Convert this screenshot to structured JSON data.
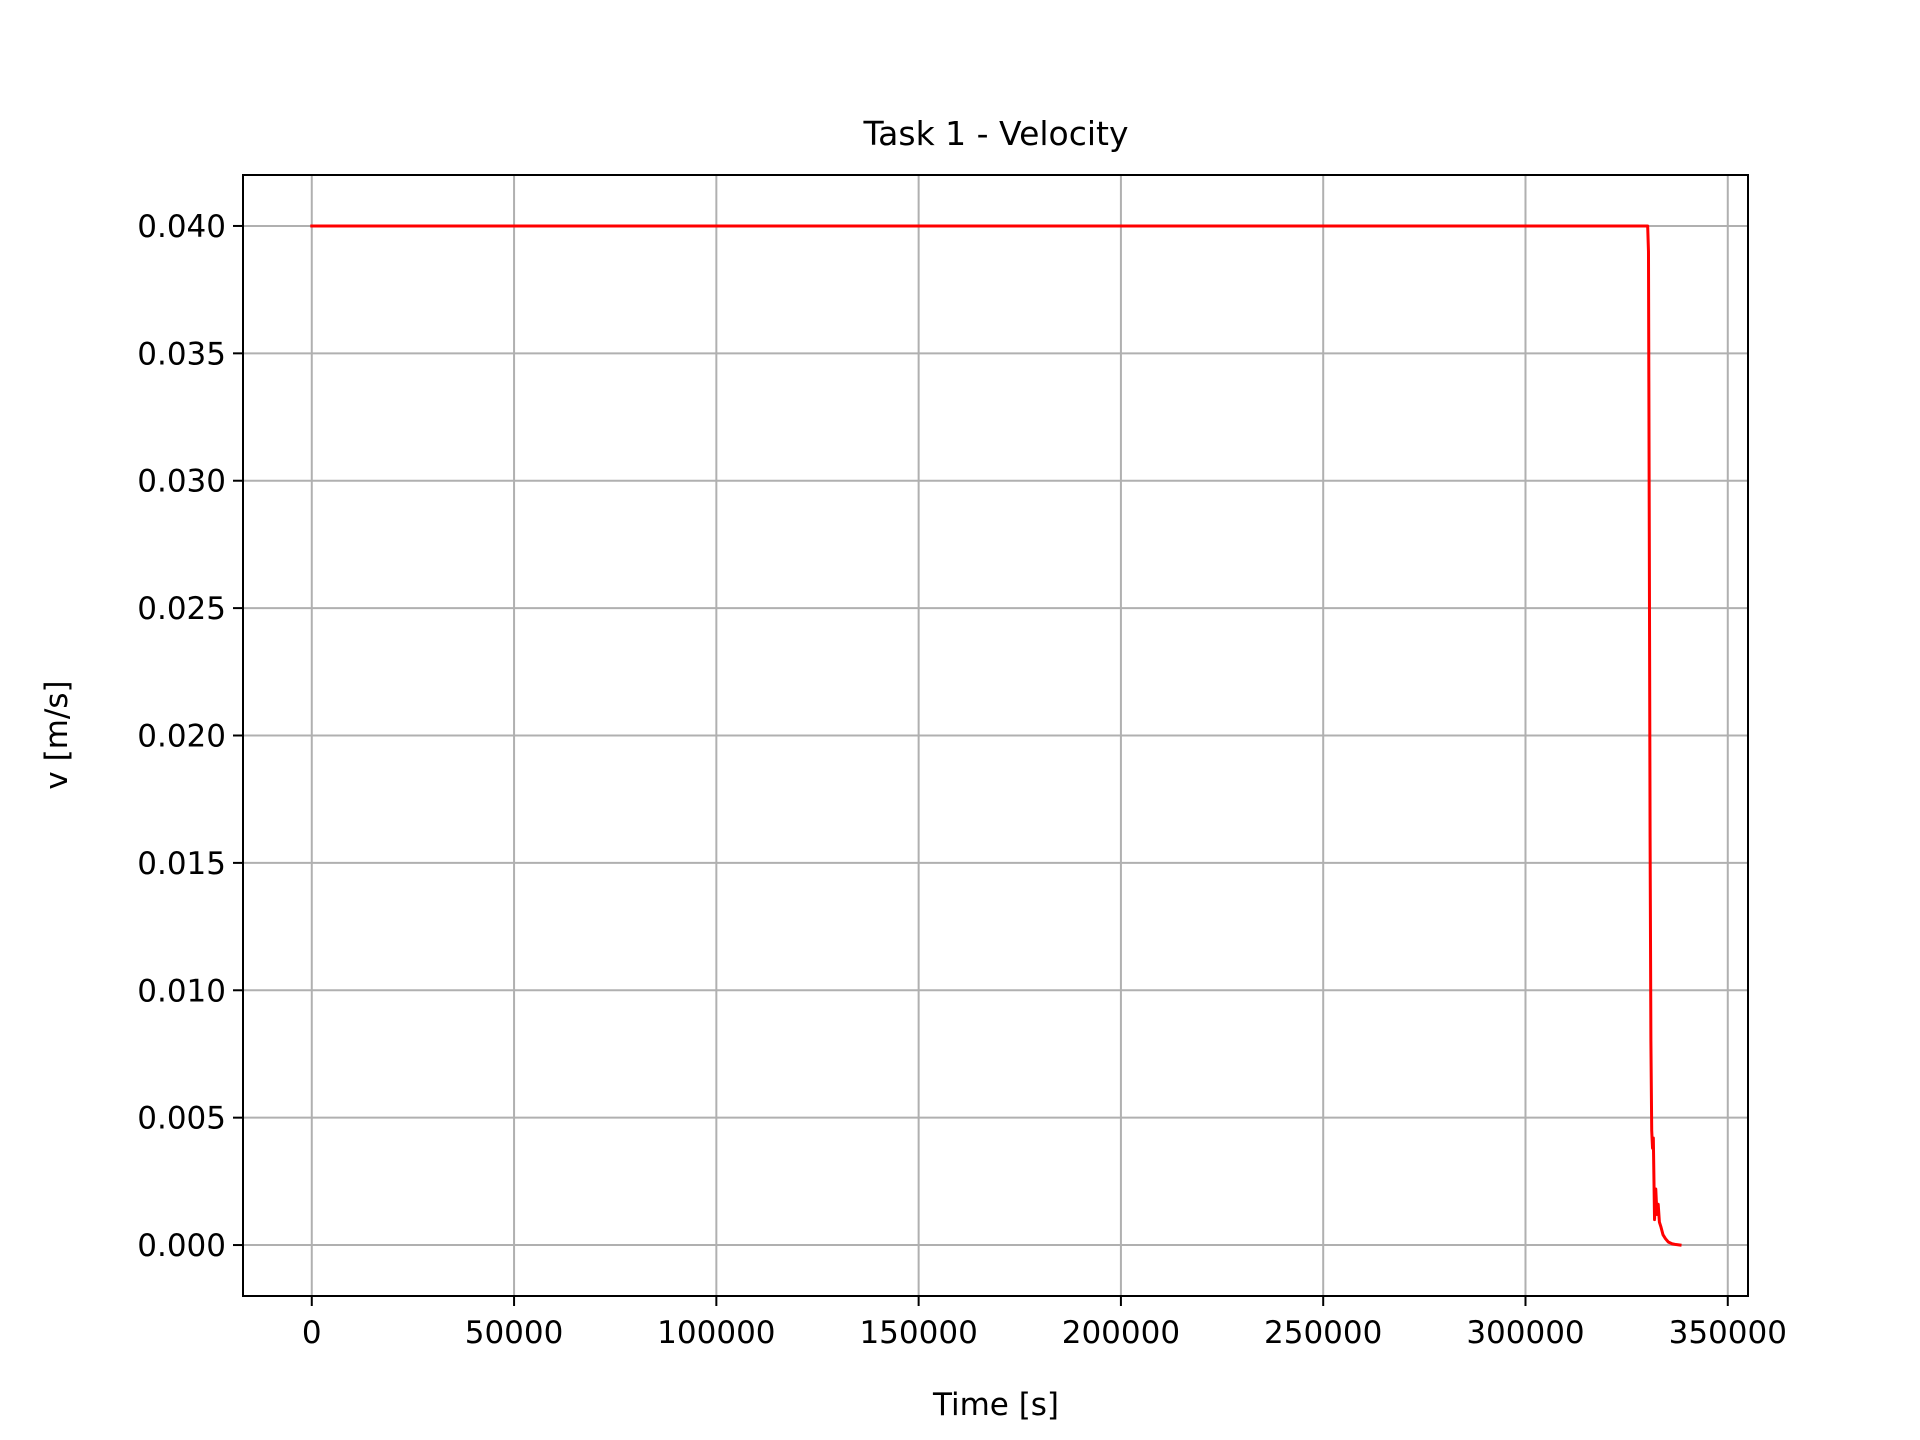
{
  "chart_data": {
    "type": "line",
    "title": "Task 1 - Velocity",
    "xlabel": "Time [s]",
    "ylabel": "v [m/s]",
    "xlim": [
      -17000,
      355000
    ],
    "ylim": [
      -0.002,
      0.042
    ],
    "x_ticks": [
      0,
      50000,
      100000,
      150000,
      200000,
      250000,
      300000,
      350000
    ],
    "x_tick_labels": [
      "0",
      "50000",
      "100000",
      "150000",
      "200000",
      "250000",
      "300000",
      "350000"
    ],
    "y_ticks": [
      0.0,
      0.005,
      0.01,
      0.015,
      0.02,
      0.025,
      0.03,
      0.035,
      0.04
    ],
    "y_tick_labels": [
      "0.000",
      "0.005",
      "0.010",
      "0.015",
      "0.020",
      "0.025",
      "0.030",
      "0.035",
      "0.040"
    ],
    "grid": true,
    "line_color": "#ff0000",
    "grid_color": "#b0b0b0",
    "series": [
      {
        "x": [
          0,
          330200,
          330400,
          330600,
          330800,
          331000,
          331200,
          331400,
          331600,
          331900,
          332200,
          332500,
          332800,
          333100,
          333500,
          334000,
          334600,
          335300,
          336200,
          337200,
          338200
        ],
        "y": [
          0.04,
          0.04,
          0.039,
          0.028,
          0.016,
          0.008,
          0.0045,
          0.0038,
          0.0042,
          0.001,
          0.0022,
          0.0012,
          0.0016,
          0.0009,
          0.0007,
          0.0004,
          0.00025,
          0.00012,
          5e-05,
          2e-05,
          0.0
        ]
      }
    ]
  }
}
